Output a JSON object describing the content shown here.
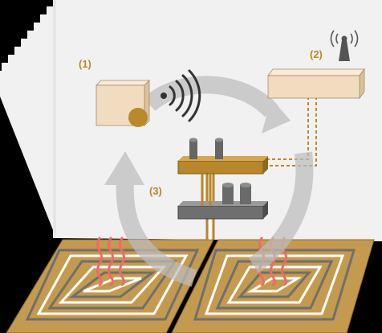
{
  "labels": {
    "thermostat": "(1)",
    "receiver": "(2)",
    "manifold": "(3)"
  },
  "colors": {
    "wall": "#f1f1f1",
    "floor_panel": "#c49a4e",
    "pipe_gray": "#6f6f6f",
    "pipe_white": "#ffffff",
    "box_front": "#f1dcbf",
    "box_top": "#f8ebd8",
    "box_side": "#dcc19b",
    "knob": "#b9892a",
    "manifold_gold": "#b8862b",
    "manifold_gray": "#707070",
    "heat_waves": "#ef6a6a",
    "cycle_arrow": "#bdbdbd",
    "wire": "#b8892a",
    "label": "#b8892a"
  },
  "icons": [
    "wifi-signal-icon",
    "antenna-icon",
    "heat-wave-icon",
    "cycle-arrow-icon"
  ]
}
